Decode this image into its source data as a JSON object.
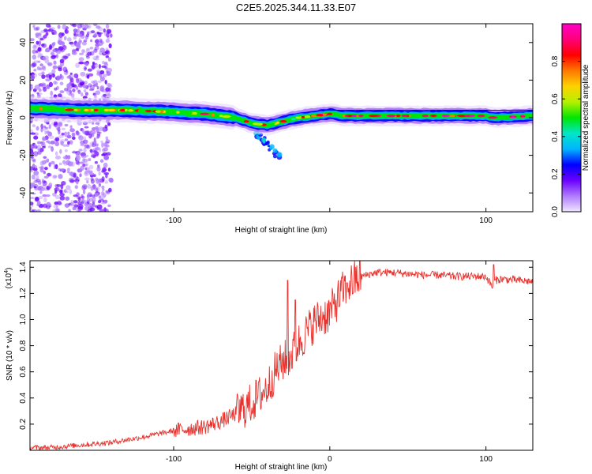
{
  "title": "C2E5.2025.344.11.33.E07",
  "chart_data": [
    {
      "type": "heatmap",
      "name": "spectrogram",
      "xlabel": "Height of straight line (km)",
      "ylabel": "Frequency (Hz)",
      "xlim": [
        -192,
        130
      ],
      "ylim": [
        -50,
        50
      ],
      "xticks": [
        -100,
        0,
        100
      ],
      "xtick_labels": [
        "-100",
        "",
        "100"
      ],
      "yticks": [
        -40,
        -20,
        0,
        20,
        40
      ],
      "ytick_labels": [
        "-40",
        "-20",
        "0",
        "20",
        "40"
      ],
      "colorbar": {
        "label": "Normalized spectral amplitude",
        "range": [
          0,
          1
        ],
        "ticks": [
          0.0,
          0.2,
          0.4,
          0.6,
          0.8
        ],
        "tick_labels": [
          "0.0",
          "0.2",
          "0.4",
          "0.6",
          "0.8"
        ],
        "colors": [
          "#f0e6ff",
          "#b07cff",
          "#6a00ff",
          "#0000ff",
          "#00b4ff",
          "#00e6c8",
          "#00e600",
          "#b4f000",
          "#ffd200",
          "#ff7800",
          "#ff0000",
          "#ff0078",
          "#ff00c8"
        ]
      },
      "ridge": {
        "x": [
          -192,
          -160,
          -130,
          -100,
          -80,
          -60,
          -50,
          -40,
          -30,
          -20,
          -10,
          0,
          10,
          20,
          40,
          60,
          80,
          100,
          105,
          130
        ],
        "freq": [
          5,
          4,
          4,
          3,
          2,
          0,
          -3,
          -4,
          -2,
          0,
          1,
          2,
          1,
          1,
          1,
          1,
          1,
          1,
          0,
          1
        ]
      },
      "noise_region_x": [
        -192,
        -140
      ]
    },
    {
      "type": "line",
      "name": "snr",
      "xlabel": "Height of straight line (km)",
      "ylabel": "SNR (10 * v/v)",
      "ylabel_scale": "(x10",
      "ylabel_scale_exp": "4",
      "xlim": [
        -192,
        130
      ],
      "ylim": [
        0,
        1.45
      ],
      "xticks": [
        -100,
        0,
        100
      ],
      "xtick_labels": [
        "-100",
        "0",
        "100"
      ],
      "yticks": [
        0.2,
        0.4,
        0.6,
        0.8,
        1.0,
        1.2,
        1.4
      ],
      "ytick_labels": [
        "0.2",
        "0.4",
        "0.6",
        "0.8",
        "1.0",
        "1.2",
        "1.4"
      ],
      "color": "#e8312c",
      "series": {
        "x": [
          -192,
          -180,
          -160,
          -140,
          -120,
          -100,
          -80,
          -70,
          -60,
          -50,
          -40,
          -35,
          -30,
          -25,
          -20,
          -15,
          -10,
          -5,
          0,
          5,
          10,
          20,
          30,
          40,
          50,
          60,
          70,
          80,
          90,
          100,
          104,
          106,
          110,
          120,
          130
        ],
        "y": [
          0.02,
          0.02,
          0.04,
          0.06,
          0.1,
          0.15,
          0.18,
          0.22,
          0.28,
          0.36,
          0.48,
          0.6,
          0.68,
          0.72,
          0.82,
          0.9,
          0.98,
          1.02,
          1.05,
          1.15,
          1.25,
          1.33,
          1.36,
          1.36,
          1.35,
          1.34,
          1.34,
          1.33,
          1.33,
          1.33,
          1.25,
          1.3,
          1.31,
          1.3,
          1.29
        ]
      },
      "spikes": [
        {
          "x": -27,
          "y": 1.3
        },
        {
          "x": -22,
          "y": 1.15
        },
        {
          "x": 11,
          "y": 1.28
        },
        {
          "x": 105,
          "y": 1.42
        }
      ]
    }
  ]
}
